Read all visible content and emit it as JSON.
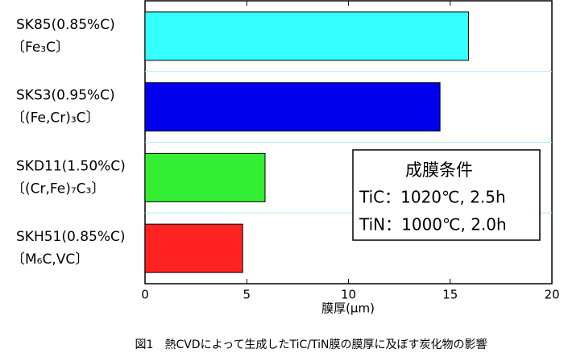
{
  "chart_data": {
    "type": "barh",
    "categories": [
      [
        "SK85(0.85%C)",
        "〔Fe₃C〕"
      ],
      [
        "SKS3(0.95%C)",
        "〔(Fe,Cr)₃C〕"
      ],
      [
        "SKD11(1.50%C)",
        "〔(Cr,Fe)₇C₃〕"
      ],
      [
        "SKH51(0.85%C)",
        "〔M₆C,VC〕"
      ]
    ],
    "values": [
      15.9,
      14.5,
      5.9,
      4.8
    ],
    "colors": [
      "#33ffff",
      "#0000ee",
      "#33ee33",
      "#ff2222"
    ],
    "xlim": [
      0,
      20
    ],
    "xticks": [
      0,
      5,
      10,
      15,
      20
    ],
    "xlabel": "膜厚(μm)",
    "annotations": [
      "成膜条件",
      "TiC：1020℃, 2.5h",
      "TiN：1000℃, 2.0h"
    ],
    "caption": "図1　熱CVDによって生成したTiC/TiN膜の膜厚に及ぼす炭化物の影響"
  }
}
